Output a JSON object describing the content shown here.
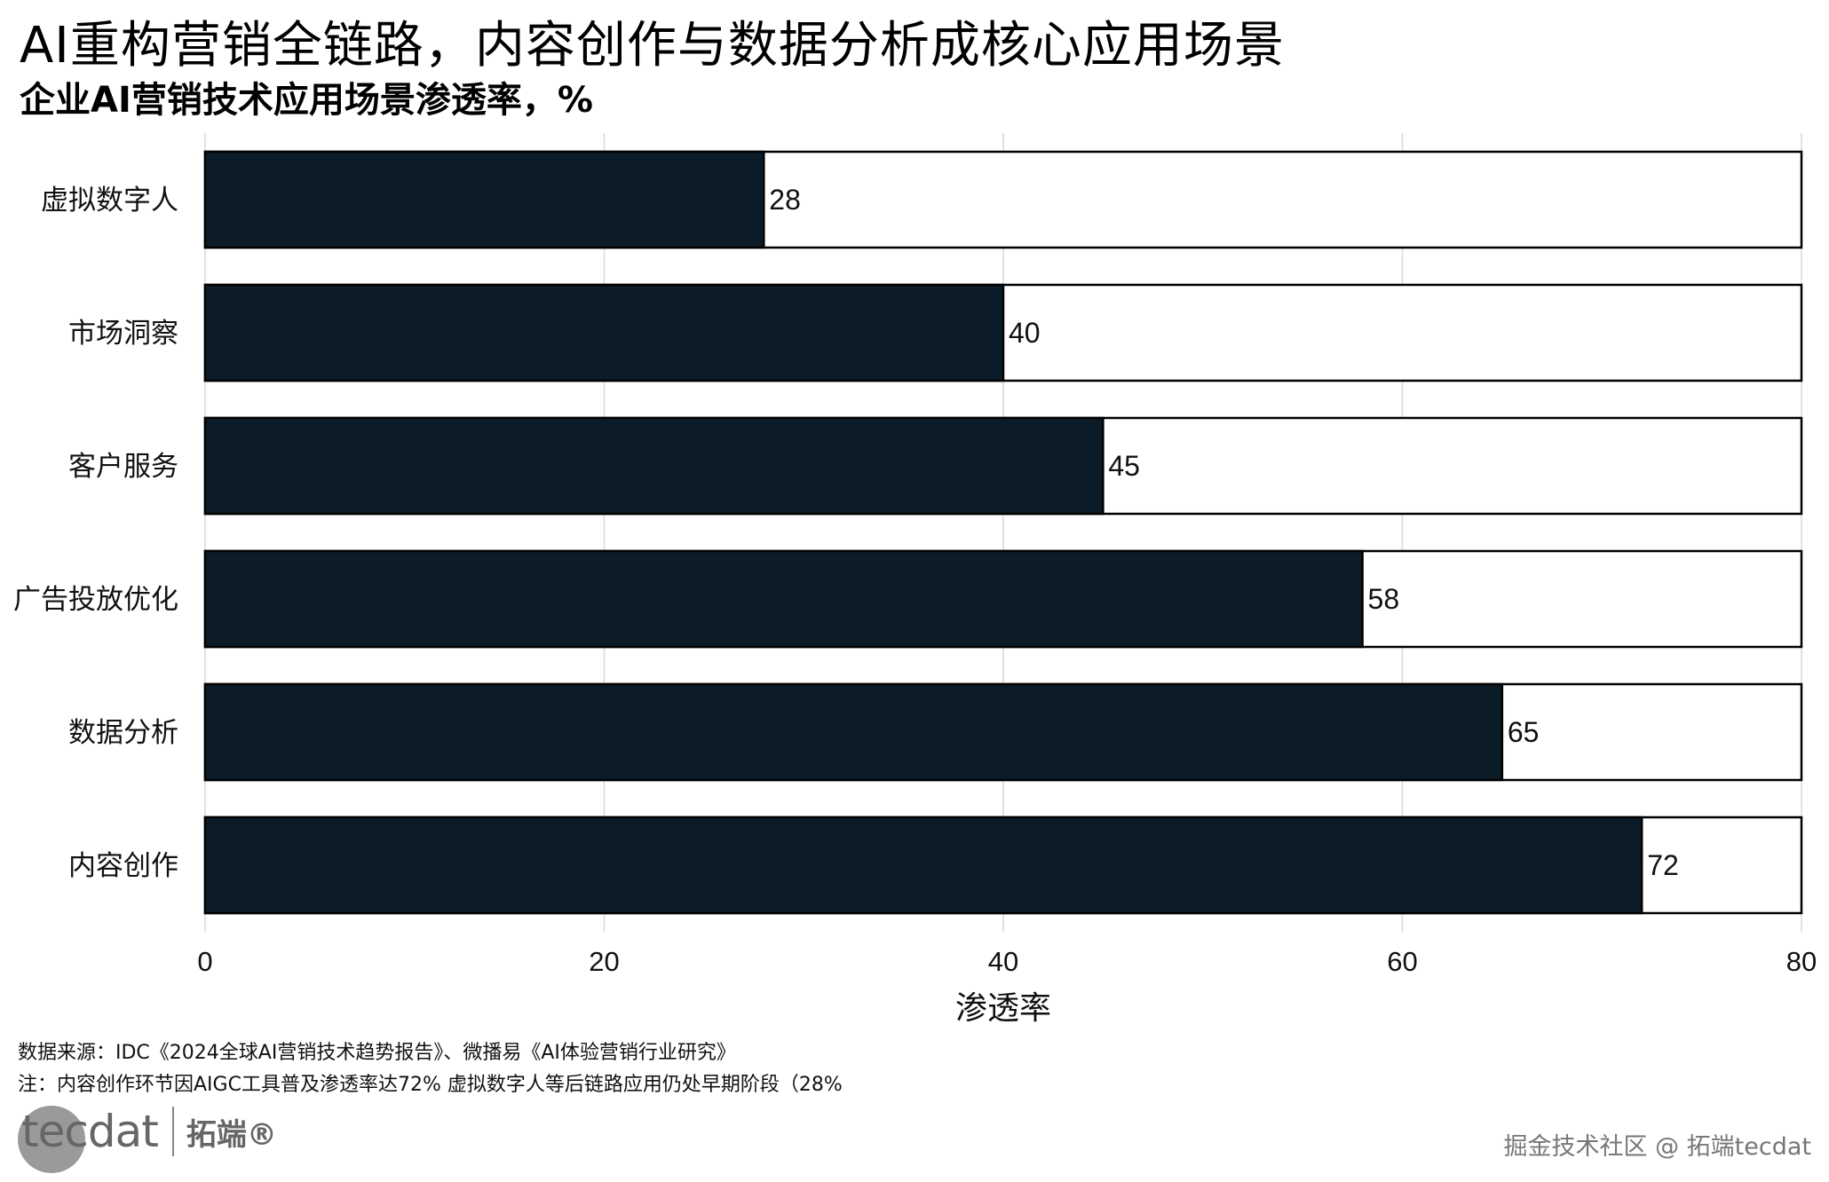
{
  "title": "AI重构营销全链路，内容创作与数据分析成核心应用场景",
  "subtitle": "企业AI营销技术应用场景渗透率，%",
  "footer": {
    "source": "数据来源：IDC《2024全球AI营销技术趋势报告》、微播易《AI体验营销行业研究》",
    "note": "注：内容创作环节因AIGC工具普及渗透率达72%  虚拟数字人等后链路应用仍处早期阶段（28%"
  },
  "logo": {
    "en": "tecdat",
    "cn": "拓端®"
  },
  "watermark": "掘金技术社区 @ 拓端tecdat",
  "colors": {
    "bar": "#0b1c28",
    "background": "#ffffff",
    "grid": "#d9d9d9"
  },
  "chart_data": {
    "type": "bar",
    "orientation": "horizontal",
    "categories": [
      "虚拟数字人",
      "市场洞察",
      "客户服务",
      "广告投放优化",
      "数据分析",
      "内容创作"
    ],
    "values": [
      28,
      40,
      45,
      58,
      65,
      72
    ],
    "data_labels": [
      "28",
      "40",
      "45",
      "58",
      "65",
      "72"
    ],
    "background_bar_max": 80,
    "title": "",
    "xlabel": "渗透率",
    "ylabel": "",
    "xlim": [
      0,
      80
    ],
    "xticks": [
      0,
      20,
      40,
      60,
      80
    ],
    "xtick_labels": [
      "0",
      "20",
      "40",
      "60",
      "80"
    ],
    "grid": "vertical"
  }
}
